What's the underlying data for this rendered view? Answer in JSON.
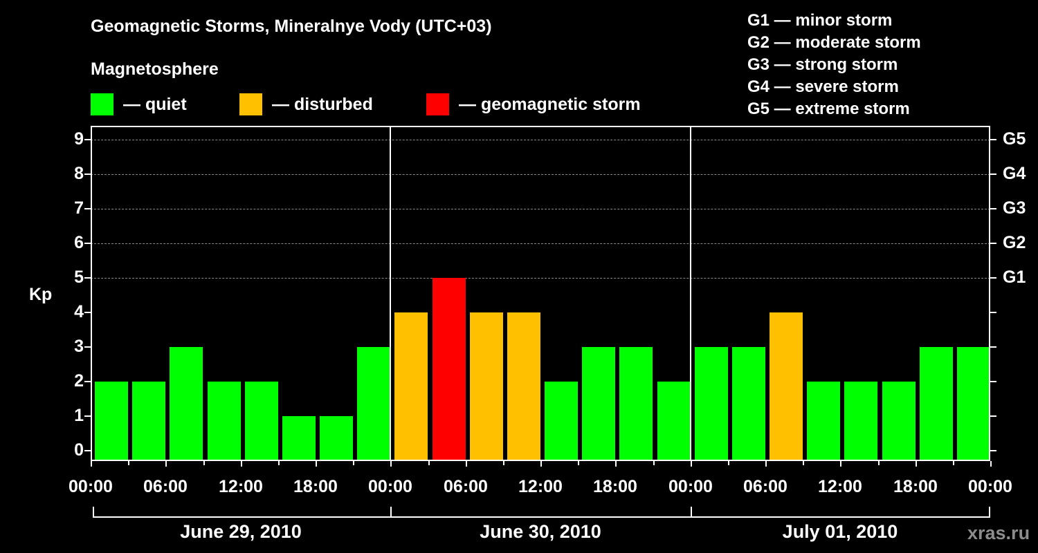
{
  "header": {
    "title": "Geomagnetic Storms, Mineralnye Vody (UTC+03)",
    "subtitle": "Magnetosphere"
  },
  "legend": [
    {
      "label": "— quiet",
      "color": "#00ff00"
    },
    {
      "label": "— disturbed",
      "color": "#ffc000"
    },
    {
      "label": "— geomagnetic storm",
      "color": "#ff0000"
    }
  ],
  "g_scale": [
    "G1 — minor storm",
    "G2 — moderate storm",
    "G3 — strong storm",
    "G4 — severe storm",
    "G5 — extreme storm"
  ],
  "axis": {
    "ylabel": "Kp",
    "yticks": [
      "0",
      "1",
      "2",
      "3",
      "4",
      "5",
      "6",
      "7",
      "8",
      "9"
    ],
    "right_ticks": {
      "5": "G1",
      "6": "G2",
      "7": "G3",
      "8": "G4",
      "9": "G5"
    },
    "xticks": [
      "00:00",
      "06:00",
      "12:00",
      "18:00",
      "00:00",
      "06:00",
      "12:00",
      "18:00",
      "00:00",
      "06:00",
      "12:00",
      "18:00",
      "00:00"
    ],
    "dates": [
      "June 29, 2010",
      "June 30, 2010",
      "July 01, 2010"
    ]
  },
  "watermark": "xras.ru",
  "colors": {
    "quiet": "#00ff00",
    "disturbed": "#ffc000",
    "storm": "#ff0000"
  },
  "chart_data": {
    "type": "bar",
    "title": "Geomagnetic Storms, Mineralnye Vody (UTC+03)",
    "xlabel": "",
    "ylabel": "Kp",
    "ylim": [
      0,
      9
    ],
    "grid": "dashed horizontal lines at Kp 5-9",
    "legend_position": "top",
    "categories": [
      "2010-06-29 00-03",
      "2010-06-29 03-06",
      "2010-06-29 06-09",
      "2010-06-29 09-12",
      "2010-06-29 12-15",
      "2010-06-29 15-18",
      "2010-06-29 18-21",
      "2010-06-29 21-24",
      "2010-06-30 00-03",
      "2010-06-30 03-06",
      "2010-06-30 06-09",
      "2010-06-30 09-12",
      "2010-06-30 12-15",
      "2010-06-30 15-18",
      "2010-06-30 18-21",
      "2010-06-30 21-24",
      "2010-07-01 00-03",
      "2010-07-01 03-06",
      "2010-07-01 06-09",
      "2010-07-01 09-12",
      "2010-07-01 12-15",
      "2010-07-01 15-18",
      "2010-07-01 18-21",
      "2010-07-01 21-24"
    ],
    "values": [
      2,
      2,
      3,
      2,
      2,
      1,
      1,
      3,
      4,
      5,
      4,
      4,
      2,
      3,
      3,
      2,
      3,
      3,
      4,
      2,
      2,
      2,
      3,
      3
    ],
    "status": [
      "quiet",
      "quiet",
      "quiet",
      "quiet",
      "quiet",
      "quiet",
      "quiet",
      "quiet",
      "disturbed",
      "storm",
      "disturbed",
      "disturbed",
      "quiet",
      "quiet",
      "quiet",
      "quiet",
      "quiet",
      "quiet",
      "disturbed",
      "quiet",
      "quiet",
      "quiet",
      "quiet",
      "quiet"
    ]
  }
}
